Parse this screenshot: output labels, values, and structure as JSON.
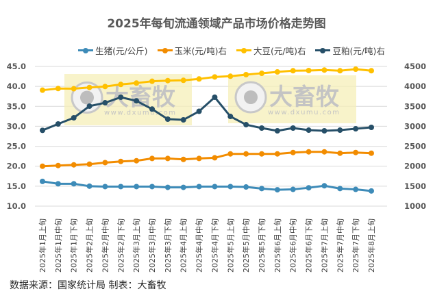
{
  "title": "2025年每旬流通领域产品市场价格走势图",
  "footer": "数据来源：国家统计局 制表：大畜牧",
  "watermark": {
    "brand": "大畜牧",
    "url": "www.dxumu.com"
  },
  "legend": [
    {
      "label": "生猪(元/公斤)",
      "color": "#3d8bb8"
    },
    {
      "label": "玉米(元/吨)右",
      "color": "#f28c00"
    },
    {
      "label": "大豆(元/吨)右",
      "color": "#ffc000"
    },
    {
      "label": "豆粕(元/吨)右",
      "color": "#264f68"
    }
  ],
  "chart_data": {
    "type": "line",
    "title": "2025年每旬流通领域产品市场价格走势图",
    "xlabel": "",
    "ylabel": "",
    "y2label": "",
    "ylim": [
      10,
      45
    ],
    "y2lim": [
      1000,
      4500
    ],
    "yticks": [
      "10.0",
      "15.0",
      "20.0",
      "25.0",
      "30.0",
      "35.0",
      "40.0",
      "45.0"
    ],
    "y2ticks": [
      "1000",
      "1500",
      "2000",
      "2500",
      "3000",
      "3500",
      "4000",
      "4500"
    ],
    "grid": true,
    "legend_position": "top",
    "categories": [
      "2025年1月上旬",
      "2025年1月中旬",
      "2025年1月下旬",
      "2025年2月上旬",
      "2025年2月中旬",
      "2025年2月下旬",
      "2025年3月上旬",
      "2025年3月中旬",
      "2025年3月下旬",
      "2025年4月上旬",
      "2025年4月中旬",
      "2025年4月下旬",
      "2025年5月上旬",
      "2025年5月中旬",
      "2025年5月下旬",
      "2025年6月上旬",
      "2025年6月中旬",
      "2025年6月下旬",
      "2025年7月上旬",
      "2025年7月中旬",
      "2025年7月下旬",
      "2025年8月上旬"
    ],
    "series": [
      {
        "name": "生猪(元/公斤)",
        "axis": "left",
        "color": "#3d8bb8",
        "values": [
          16.2,
          15.6,
          15.6,
          15.0,
          14.9,
          14.9,
          14.9,
          14.9,
          14.7,
          14.7,
          14.9,
          14.9,
          14.9,
          14.8,
          14.4,
          14.1,
          14.2,
          14.6,
          15.1,
          14.4,
          14.2,
          13.8
        ]
      },
      {
        "name": "玉米(元/吨)右",
        "axis": "right",
        "color": "#f28c00",
        "values": [
          2000,
          2017,
          2034,
          2051,
          2090,
          2120,
          2137,
          2194,
          2194,
          2171,
          2194,
          2211,
          2309,
          2309,
          2309,
          2309,
          2343,
          2360,
          2360,
          2326,
          2343,
          2326
        ]
      },
      {
        "name": "大豆(元/吨)右",
        "axis": "right",
        "color": "#ffc000",
        "values": [
          3905,
          3946,
          3942,
          3973,
          3997,
          4049,
          4083,
          4128,
          4145,
          4152,
          4186,
          4237,
          4255,
          4294,
          4328,
          4363,
          4392,
          4397,
          4409,
          4392,
          4431,
          4392
        ]
      },
      {
        "name": "豆粕(元/吨)右",
        "axis": "right",
        "color": "#264f68",
        "values": [
          2899,
          3059,
          3213,
          3505,
          3590,
          3728,
          3637,
          3431,
          3179,
          3162,
          3376,
          3728,
          3247,
          3041,
          2956,
          2887,
          2956,
          2904,
          2887,
          2904,
          2938,
          2973
        ]
      }
    ]
  }
}
